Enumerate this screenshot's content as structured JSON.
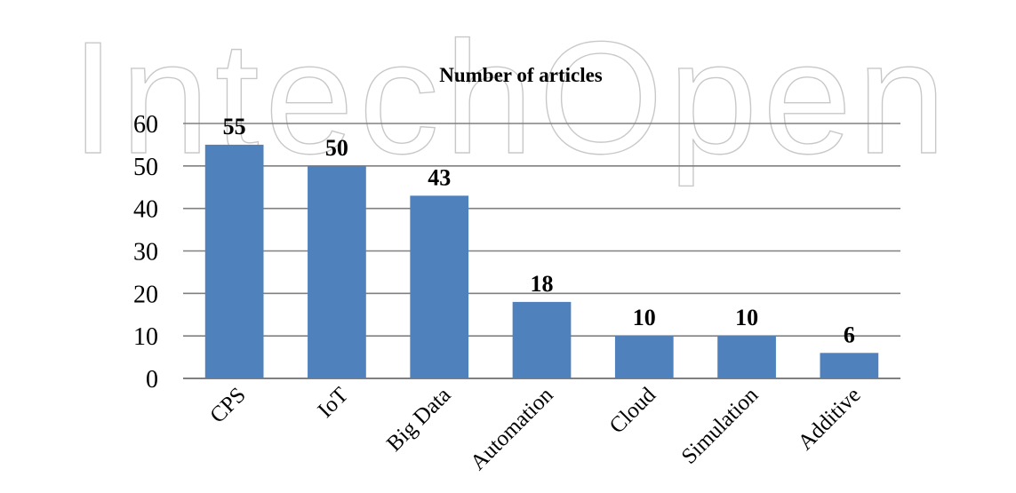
{
  "watermark": {
    "text": "IntechOpen",
    "color": "#c8c8c8"
  },
  "chart_data": {
    "type": "bar",
    "title": "Number of articles",
    "xlabel": "",
    "ylabel": "",
    "categories": [
      "CPS",
      "IoT",
      "Big Data",
      "Automation",
      "Cloud",
      "Simulation",
      "Additive"
    ],
    "values": [
      55,
      50,
      43,
      18,
      10,
      10,
      6
    ],
    "data_labels": [
      "55",
      "50",
      "43",
      "18",
      "10",
      "10",
      "6"
    ],
    "ylim": [
      0,
      60
    ],
    "yticks": [
      0,
      10,
      20,
      30,
      40,
      50,
      60
    ],
    "ytick_labels": [
      "0",
      "10",
      "20",
      "30",
      "40",
      "50",
      "60"
    ],
    "grid": true,
    "legend": "none",
    "bar_color": "#4f81bd",
    "grid_color": "#808080"
  }
}
